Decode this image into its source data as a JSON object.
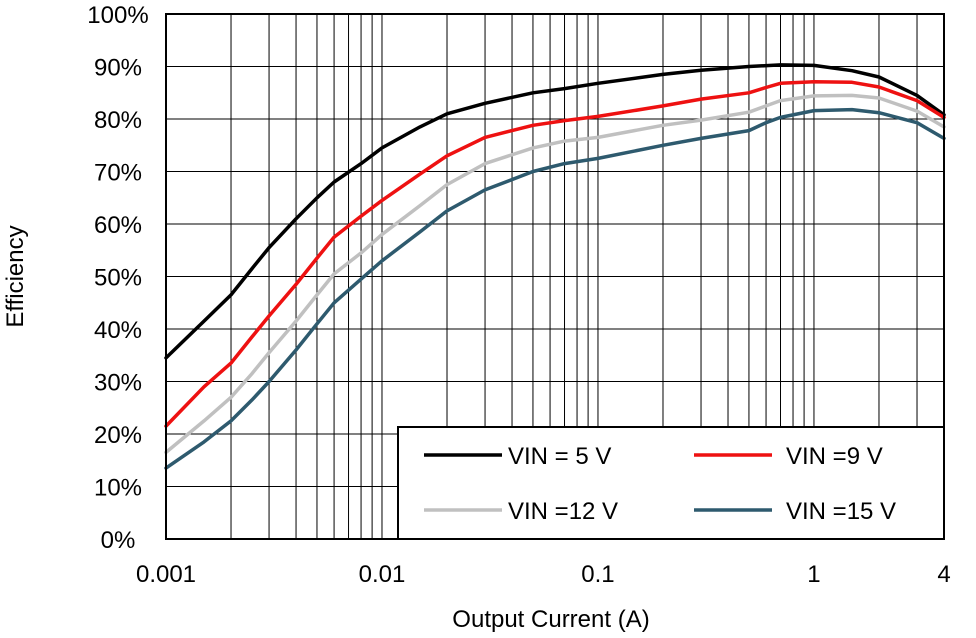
{
  "chart_data": {
    "type": "line",
    "x_scale": "log",
    "xlim": [
      0.001,
      4
    ],
    "ylim": [
      0,
      100
    ],
    "xlabel": "Output Current (A)",
    "ylabel": "Efficiency",
    "x_ticks": [
      {
        "value": 0.001,
        "label": "0.001"
      },
      {
        "value": 0.01,
        "label": "0.01"
      },
      {
        "value": 0.1,
        "label": "0.1"
      },
      {
        "value": 1,
        "label": "1"
      },
      {
        "value": 4,
        "label": "4"
      }
    ],
    "y_ticks": [
      {
        "value": 0,
        "label": "0%"
      },
      {
        "value": 10,
        "label": "10%"
      },
      {
        "value": 20,
        "label": "20%"
      },
      {
        "value": 30,
        "label": "30%"
      },
      {
        "value": 40,
        "label": "40%"
      },
      {
        "value": 50,
        "label": "50%"
      },
      {
        "value": 60,
        "label": "60%"
      },
      {
        "value": 70,
        "label": "70%"
      },
      {
        "value": 80,
        "label": "80%"
      },
      {
        "value": 90,
        "label": "90%"
      },
      {
        "value": 100,
        "label": "100%"
      }
    ],
    "grid": true,
    "legend_position": "bottom-right",
    "series": [
      {
        "name": "VIN = 5 V",
        "color": "#000000",
        "x": [
          0.001,
          0.0015,
          0.002,
          0.0025,
          0.003,
          0.004,
          0.005,
          0.006,
          0.008,
          0.01,
          0.015,
          0.02,
          0.03,
          0.05,
          0.07,
          0.1,
          0.2,
          0.3,
          0.5,
          0.7,
          1,
          1.5,
          2,
          3,
          4
        ],
        "y": [
          34.5,
          41.5,
          46.5,
          51.5,
          55.5,
          61,
          65,
          68,
          71.5,
          74.5,
          78.5,
          81,
          83,
          85,
          85.8,
          86.8,
          88.5,
          89.3,
          90,
          90.3,
          90.2,
          89.2,
          88,
          84.5,
          80.8
        ]
      },
      {
        "name": "VIN =9 V",
        "color": "#ee1111",
        "x": [
          0.001,
          0.0015,
          0.002,
          0.0025,
          0.003,
          0.004,
          0.005,
          0.006,
          0.008,
          0.01,
          0.015,
          0.02,
          0.03,
          0.05,
          0.07,
          0.1,
          0.2,
          0.3,
          0.5,
          0.6,
          0.7,
          1,
          1.5,
          2,
          3,
          4
        ],
        "y": [
          21.5,
          29,
          33.5,
          38.5,
          42.5,
          48.5,
          53.5,
          57.5,
          61.5,
          64.5,
          69.5,
          73,
          76.5,
          78.8,
          79.7,
          80.5,
          82.5,
          83.8,
          85,
          86,
          86.8,
          87.1,
          87,
          86.1,
          83.5,
          80.3
        ]
      },
      {
        "name": "VIN =12 V",
        "color": "#c0c0c0",
        "x": [
          0.001,
          0.0015,
          0.002,
          0.0025,
          0.003,
          0.004,
          0.005,
          0.006,
          0.008,
          0.01,
          0.015,
          0.02,
          0.03,
          0.05,
          0.07,
          0.1,
          0.2,
          0.3,
          0.5,
          0.6,
          0.7,
          1,
          1.5,
          2,
          3,
          4
        ],
        "y": [
          16.5,
          22.5,
          27,
          31.5,
          35.5,
          41.5,
          46.5,
          50.5,
          54.5,
          58,
          63.5,
          67.5,
          71.5,
          74.5,
          75.8,
          76.5,
          78.8,
          79.8,
          81.3,
          82.5,
          83.5,
          84.4,
          84.5,
          84,
          81.5,
          78.5
        ]
      },
      {
        "name": "VIN =15 V",
        "color": "#2e5a6e",
        "x": [
          0.001,
          0.0015,
          0.002,
          0.0025,
          0.003,
          0.004,
          0.005,
          0.006,
          0.008,
          0.01,
          0.015,
          0.02,
          0.03,
          0.05,
          0.07,
          0.1,
          0.2,
          0.3,
          0.5,
          0.6,
          0.7,
          1,
          1.5,
          2,
          3,
          4
        ],
        "y": [
          13.5,
          18.5,
          22.5,
          26.5,
          30,
          36,
          41,
          45,
          49.5,
          53,
          58.5,
          62.5,
          66.5,
          70,
          71.5,
          72.5,
          75,
          76.3,
          77.8,
          79.3,
          80.3,
          81.6,
          81.8,
          81.2,
          79.3,
          76.3
        ]
      }
    ]
  }
}
